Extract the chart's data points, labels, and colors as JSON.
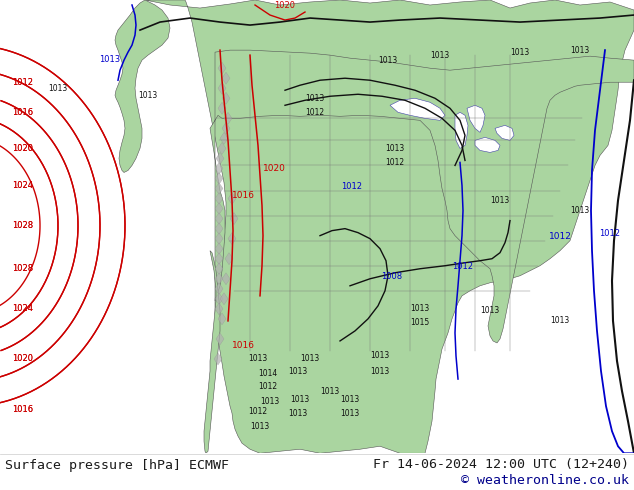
{
  "title_left": "Surface pressure [hPa] ECMWF",
  "title_right": "Fr 14-06-2024 12:00 UTC (12+240)",
  "copyright": "© weatheronline.co.uk",
  "bg_color": "#ffffff",
  "ocean_color": "#ffffff",
  "land_color": "#aad5a0",
  "land_edge": "#555555",
  "mountain_color": "#b0b0b0",
  "footer_bg": "#ffffff",
  "footer_text_color": "#1a1a1a",
  "footer_font_size": 9.5,
  "copyright_color": "#00008b",
  "fig_width": 6.34,
  "fig_height": 4.9,
  "red_color": "#cc0000",
  "blue_color": "#0000cc",
  "black_color": "#111111"
}
